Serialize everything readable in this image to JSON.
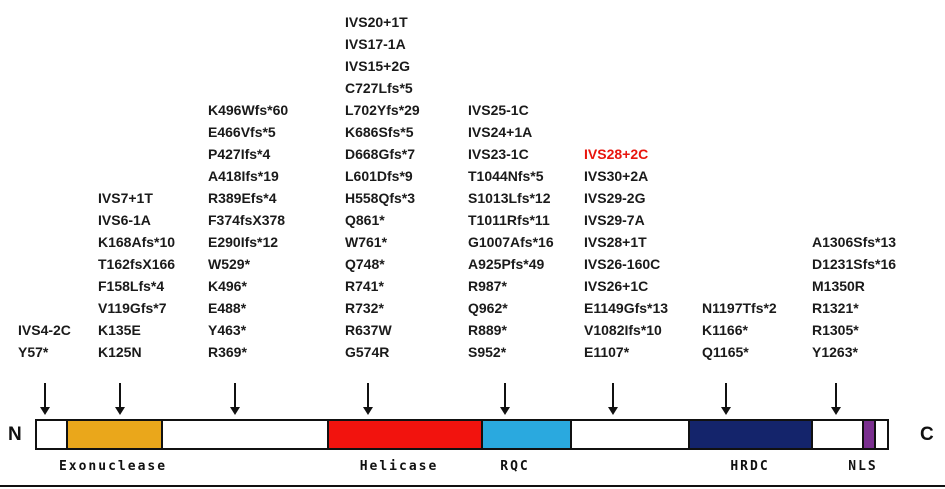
{
  "terminals": {
    "n_label": "N",
    "c_label": "C"
  },
  "highlight_color": "#e8150d",
  "text_color": "#1a1a1a",
  "columns": [
    {
      "mutations": [
        "IVS4-2C",
        "Y57*"
      ]
    },
    {
      "mutations": [
        "IVS7+1T",
        "IVS6-1A",
        "K168Afs*10",
        "T162fsX166",
        "F158Lfs*4",
        "V119Gfs*7",
        "K135E",
        "K125N"
      ]
    },
    {
      "mutations": [
        "K496Wfs*60",
        "E466Vfs*5",
        "P427Ifs*4",
        "A418Ifs*19",
        "R389Efs*4",
        "F374fsX378",
        "E290Ifs*12",
        "W529*",
        "K496*",
        "E488*",
        "Y463*",
        "R369*"
      ]
    },
    {
      "mutations": [
        "IVS20+1T",
        "IVS17-1A",
        "IVS15+2G",
        "C727Lfs*5",
        "L702Yfs*29",
        "K686Sfs*5",
        "D668Gfs*7",
        "L601Dfs*9",
        "H558Qfs*3",
        "Q861*",
        "W761*",
        "Q748*",
        "R741*",
        "R732*",
        "R637W",
        "G574R"
      ]
    },
    {
      "mutations": [
        "IVS25-1C",
        "IVS24+1A",
        "IVS23-1C",
        "T1044Nfs*5",
        "S1013Lfs*12",
        "T1011Rfs*11",
        "G1007Afs*16",
        "A925Pfs*49",
        "R987*",
        "Q962*",
        "R889*",
        "S952*"
      ]
    },
    {
      "mutations": [
        "IVS28+2C",
        "IVS30+2A",
        "IVS29-2G",
        "IVS29-7A",
        "IVS28+1T",
        "IVS26-160C",
        "IVS26+1C",
        "E1149Gfs*13",
        "V1082Ifs*10",
        "E1107*"
      ],
      "highlighted": [
        "IVS28+2C"
      ]
    },
    {
      "mutations": [
        "N1197Tfs*2",
        "K1166*",
        "Q1165*"
      ]
    },
    {
      "mutations": [
        "A1306Sfs*13",
        "D1231Sfs*16",
        "M1350R",
        "R1321*",
        "R1305*",
        "Y1263*"
      ]
    }
  ],
  "domains": [
    {
      "label": "Exonuclease",
      "color": "#eaa71b"
    },
    {
      "label": "Helicase",
      "color": "#f2130e"
    },
    {
      "label": "RQC",
      "color": "#2aa9df"
    },
    {
      "label": "HRDC",
      "color": "#14246b"
    },
    {
      "label": "NLS",
      "color": "#7a2f8f"
    }
  ]
}
